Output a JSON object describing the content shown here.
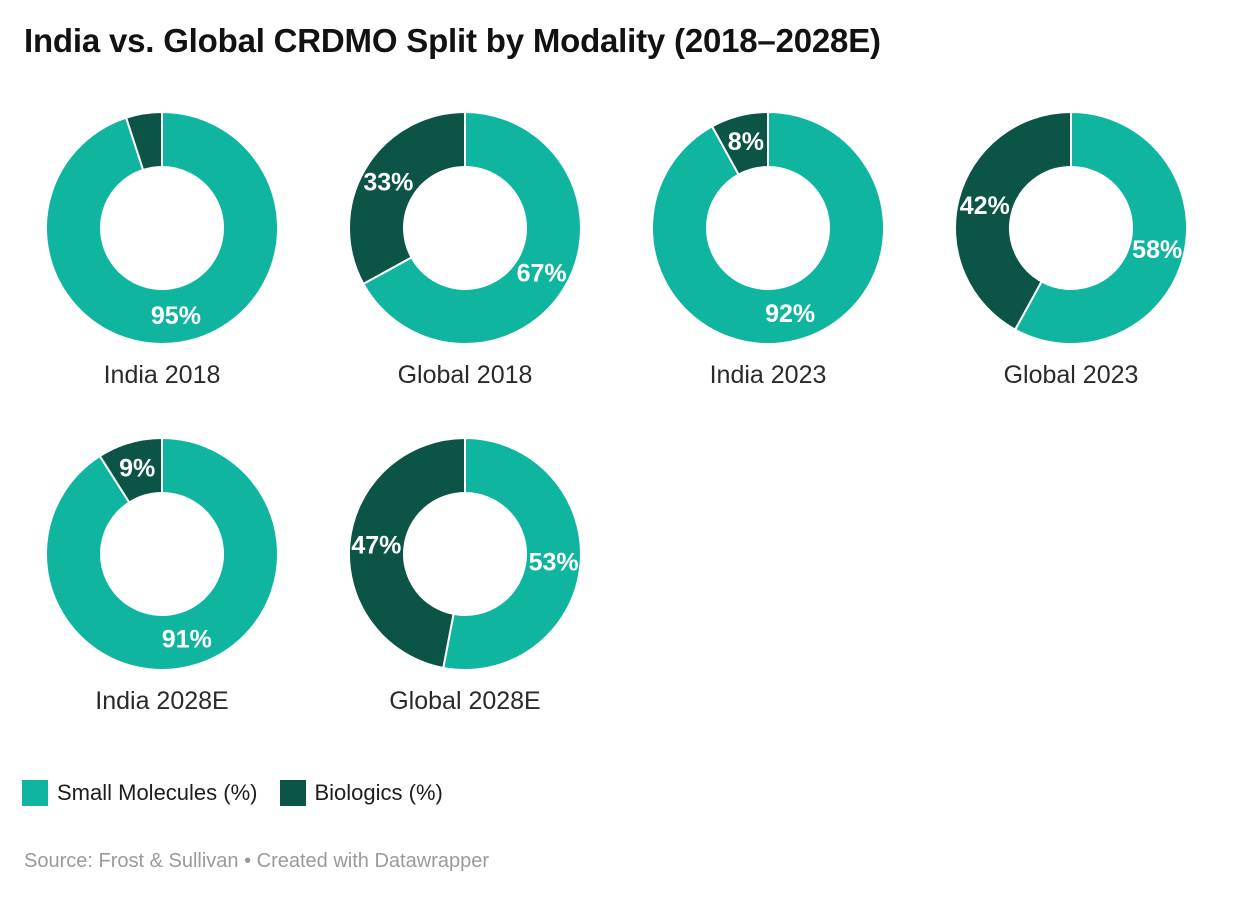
{
  "title": "India vs. Global CRDMO Split by Modality (2018–2028E)",
  "footer": "Source: Frost & Sullivan • Created with Datawrapper",
  "legend": [
    {
      "label": "Small Molecules (%)",
      "color": "#10b5a0"
    },
    {
      "label": "Biologics (%)",
      "color": "#0b5446"
    }
  ],
  "chart_data": {
    "type": "pie",
    "subtype": "donut-grid",
    "series_names": [
      "Small Molecules (%)",
      "Biologics (%)"
    ],
    "colors": [
      "#10b5a0",
      "#0b5446"
    ],
    "layout": {
      "rows": [
        4,
        2
      ],
      "start_angle": "top",
      "direction": "clockwise",
      "donut_hole_ratio": 0.53,
      "slice_separator_color": "#ffffff",
      "data_label_color": "#ffffff",
      "legend_position": "bottom-left"
    },
    "charts": [
      {
        "label": "India 2018",
        "values": [
          95,
          5
        ],
        "data_labels": [
          "95%",
          null
        ]
      },
      {
        "label": "Global 2018",
        "values": [
          67,
          33
        ],
        "data_labels": [
          "67%",
          "33%"
        ]
      },
      {
        "label": "India 2023",
        "values": [
          92,
          8
        ],
        "data_labels": [
          "92%",
          "8%"
        ]
      },
      {
        "label": "Global 2023",
        "values": [
          58,
          42
        ],
        "data_labels": [
          "58%",
          "42%"
        ]
      },
      {
        "label": "India 2028E",
        "values": [
          91,
          9
        ],
        "data_labels": [
          "91%",
          "9%"
        ]
      },
      {
        "label": "Global 2028E",
        "values": [
          53,
          47
        ],
        "data_labels": [
          "53%",
          "47%"
        ]
      }
    ]
  }
}
